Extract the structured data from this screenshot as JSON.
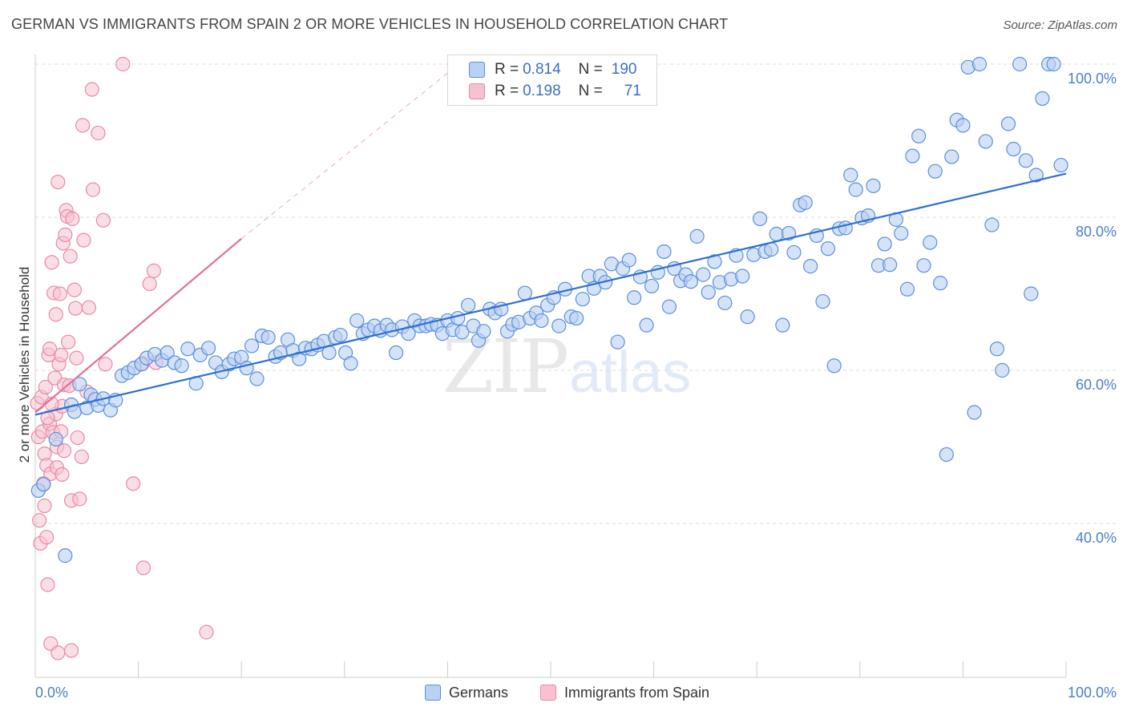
{
  "title": "GERMAN VS IMMIGRANTS FROM SPAIN 2 OR MORE VEHICLES IN HOUSEHOLD CORRELATION CHART",
  "source": "Source: ZipAtlas.com",
  "watermark": {
    "zip": "ZIP",
    "atlas": "atlas"
  },
  "colors": {
    "blue_fill": "#b9d1f3",
    "blue_stroke": "#5b8fd9",
    "blue_line": "#2f6fd1",
    "pink_fill": "#f6c2d2",
    "pink_stroke": "#e88aa7",
    "pink_line": "#e0709a",
    "tick": "#4a7fc9",
    "grid": "#dddddd"
  },
  "legend": {
    "r_label": "R =",
    "n_label": "N =",
    "rows": [
      {
        "r": "0.814",
        "n": "190"
      },
      {
        "r": "0.198",
        "n": "71"
      }
    ]
  },
  "chart_data": {
    "type": "scatter",
    "title": "GERMAN VS IMMIGRANTS FROM SPAIN 2 OR MORE VEHICLES IN HOUSEHOLD CORRELATION CHART",
    "xlabel": "",
    "ylabel": "2 or more Vehicles in Household",
    "xlim": [
      0,
      100
    ],
    "ylim": [
      20,
      101
    ],
    "x_tick_labels": [
      "0.0%",
      "100.0%"
    ],
    "y_tick_labels": [
      "40.0%",
      "60.0%",
      "80.0%",
      "100.0%"
    ],
    "y_ticks": [
      40,
      60,
      80,
      100
    ],
    "grid": true,
    "legend_position": "top-center",
    "series": [
      {
        "name": "Germans",
        "color": "#5b8fd9",
        "trend": {
          "x": [
            0,
            100
          ],
          "y": [
            54.2,
            85.7
          ]
        },
        "points": [
          [
            0.3,
            44.3
          ],
          [
            0.8,
            45.1
          ],
          [
            2.0,
            51.0
          ],
          [
            2.9,
            35.8
          ],
          [
            3.5,
            55.5
          ],
          [
            3.8,
            54.6
          ],
          [
            4.3,
            58.2
          ],
          [
            5.0,
            55.1
          ],
          [
            5.4,
            56.8
          ],
          [
            5.8,
            56.2
          ],
          [
            6.1,
            55.4
          ],
          [
            6.6,
            56.3
          ],
          [
            7.3,
            54.8
          ],
          [
            7.8,
            56.1
          ],
          [
            8.4,
            59.3
          ],
          [
            9.0,
            59.7
          ],
          [
            9.6,
            60.3
          ],
          [
            10.3,
            60.8
          ],
          [
            10.8,
            61.6
          ],
          [
            11.6,
            62.1
          ],
          [
            12.3,
            61.3
          ],
          [
            12.8,
            62.3
          ],
          [
            13.5,
            61.0
          ],
          [
            14.2,
            60.6
          ],
          [
            14.8,
            62.8
          ],
          [
            15.6,
            58.3
          ],
          [
            16.0,
            62.0
          ],
          [
            16.8,
            62.9
          ],
          [
            17.5,
            61.0
          ],
          [
            18.1,
            59.8
          ],
          [
            18.8,
            60.8
          ],
          [
            19.3,
            61.5
          ],
          [
            20.0,
            61.7
          ],
          [
            20.5,
            60.3
          ],
          [
            21.0,
            63.2
          ],
          [
            21.5,
            58.9
          ],
          [
            22.0,
            64.5
          ],
          [
            22.6,
            64.3
          ],
          [
            23.3,
            61.8
          ],
          [
            23.8,
            62.3
          ],
          [
            24.5,
            64.0
          ],
          [
            25.0,
            62.6
          ],
          [
            25.6,
            61.5
          ],
          [
            26.2,
            62.9
          ],
          [
            26.8,
            62.8
          ],
          [
            27.4,
            63.3
          ],
          [
            28.0,
            63.8
          ],
          [
            28.5,
            62.3
          ],
          [
            29.1,
            64.3
          ],
          [
            29.6,
            64.6
          ],
          [
            30.1,
            62.3
          ],
          [
            30.6,
            60.9
          ],
          [
            31.2,
            66.5
          ],
          [
            31.8,
            64.8
          ],
          [
            32.3,
            65.3
          ],
          [
            32.9,
            65.8
          ],
          [
            33.5,
            65.2
          ],
          [
            34.1,
            65.9
          ],
          [
            34.6,
            65.3
          ],
          [
            35.0,
            62.3
          ],
          [
            35.6,
            65.7
          ],
          [
            36.2,
            64.8
          ],
          [
            36.8,
            66.5
          ],
          [
            37.3,
            65.8
          ],
          [
            37.9,
            65.8
          ],
          [
            38.4,
            66.0
          ],
          [
            39.0,
            65.9
          ],
          [
            39.5,
            64.8
          ],
          [
            40.0,
            66.5
          ],
          [
            40.5,
            65.3
          ],
          [
            41.0,
            66.8
          ],
          [
            41.4,
            65.0
          ],
          [
            42.0,
            68.5
          ],
          [
            42.5,
            65.8
          ],
          [
            43.0,
            63.9
          ],
          [
            43.5,
            65.1
          ],
          [
            44.1,
            68.0
          ],
          [
            44.6,
            67.5
          ],
          [
            45.2,
            68.0
          ],
          [
            45.8,
            65.1
          ],
          [
            46.3,
            66.0
          ],
          [
            46.9,
            66.3
          ],
          [
            47.5,
            70.1
          ],
          [
            48.0,
            66.8
          ],
          [
            48.6,
            67.5
          ],
          [
            49.1,
            66.5
          ],
          [
            49.7,
            68.5
          ],
          [
            50.3,
            69.5
          ],
          [
            50.8,
            65.8
          ],
          [
            51.4,
            70.6
          ],
          [
            52.0,
            67.0
          ],
          [
            52.5,
            66.8
          ],
          [
            53.1,
            69.3
          ],
          [
            53.7,
            72.3
          ],
          [
            54.2,
            70.7
          ],
          [
            54.8,
            72.3
          ],
          [
            55.3,
            71.5
          ],
          [
            55.9,
            73.9
          ],
          [
            56.5,
            63.7
          ],
          [
            57.0,
            73.3
          ],
          [
            57.6,
            74.4
          ],
          [
            58.1,
            69.5
          ],
          [
            58.7,
            72.2
          ],
          [
            59.3,
            65.9
          ],
          [
            59.8,
            71.0
          ],
          [
            60.4,
            72.8
          ],
          [
            61.0,
            75.5
          ],
          [
            61.5,
            68.3
          ],
          [
            62.0,
            73.3
          ],
          [
            62.6,
            71.7
          ],
          [
            63.1,
            72.5
          ],
          [
            63.6,
            71.6
          ],
          [
            64.2,
            77.5
          ],
          [
            64.8,
            72.5
          ],
          [
            65.3,
            70.2
          ],
          [
            65.9,
            74.2
          ],
          [
            66.4,
            71.5
          ],
          [
            66.9,
            68.8
          ],
          [
            67.5,
            71.9
          ],
          [
            68.0,
            75.0
          ],
          [
            68.6,
            72.3
          ],
          [
            69.1,
            67.0
          ],
          [
            69.7,
            75.1
          ],
          [
            70.3,
            79.8
          ],
          [
            70.8,
            75.5
          ],
          [
            71.4,
            75.8
          ],
          [
            71.9,
            77.8
          ],
          [
            72.5,
            65.9
          ],
          [
            73.1,
            77.9
          ],
          [
            73.6,
            75.4
          ],
          [
            74.2,
            81.6
          ],
          [
            74.7,
            81.9
          ],
          [
            75.2,
            73.6
          ],
          [
            75.8,
            77.6
          ],
          [
            76.4,
            69.0
          ],
          [
            76.9,
            75.9
          ],
          [
            77.5,
            60.6
          ],
          [
            78.0,
            78.5
          ],
          [
            78.6,
            78.6
          ],
          [
            79.1,
            85.5
          ],
          [
            79.6,
            83.6
          ],
          [
            80.2,
            79.9
          ],
          [
            80.8,
            80.2
          ],
          [
            81.3,
            84.1
          ],
          [
            81.8,
            73.7
          ],
          [
            82.4,
            76.5
          ],
          [
            82.9,
            73.8
          ],
          [
            83.5,
            79.7
          ],
          [
            84.0,
            77.9
          ],
          [
            84.6,
            70.6
          ],
          [
            85.1,
            88.0
          ],
          [
            85.7,
            90.6
          ],
          [
            86.2,
            73.7
          ],
          [
            86.8,
            76.7
          ],
          [
            87.3,
            86.0
          ],
          [
            87.8,
            71.4
          ],
          [
            88.4,
            49.0
          ],
          [
            88.9,
            87.9
          ],
          [
            89.4,
            92.7
          ],
          [
            90.0,
            92.0
          ],
          [
            90.5,
            99.6
          ],
          [
            91.1,
            54.5
          ],
          [
            91.6,
            100.0
          ],
          [
            92.2,
            89.9
          ],
          [
            92.8,
            79.0
          ],
          [
            93.3,
            62.8
          ],
          [
            93.8,
            60.0
          ],
          [
            94.4,
            92.2
          ],
          [
            94.9,
            88.9
          ],
          [
            95.5,
            100.0
          ],
          [
            96.1,
            87.4
          ],
          [
            96.6,
            70.0
          ],
          [
            97.1,
            85.5
          ],
          [
            97.7,
            95.5
          ],
          [
            98.3,
            100.0
          ],
          [
            98.8,
            100.0
          ],
          [
            99.5,
            86.8
          ]
        ]
      },
      {
        "name": "Immigrants from Spain",
        "color": "#e88aa7",
        "trend": {
          "x": [
            0,
            20
          ],
          "y": [
            54.5,
            77.2
          ]
        },
        "trend_dashed": {
          "x": [
            20,
            42
          ],
          "y": [
            77.2,
            101.0
          ]
        },
        "points": [
          [
            0.2,
            55.7
          ],
          [
            0.3,
            51.3
          ],
          [
            0.4,
            40.4
          ],
          [
            0.5,
            37.4
          ],
          [
            0.6,
            56.5
          ],
          [
            0.7,
            52.0
          ],
          [
            0.8,
            45.2
          ],
          [
            0.9,
            49.1
          ],
          [
            1.0,
            57.8
          ],
          [
            1.1,
            47.6
          ],
          [
            1.1,
            38.2
          ],
          [
            1.2,
            32.0
          ],
          [
            1.3,
            62.0
          ],
          [
            1.4,
            53.0
          ],
          [
            1.5,
            24.3
          ],
          [
            1.5,
            46.5
          ],
          [
            1.6,
            74.1
          ],
          [
            1.7,
            51.9
          ],
          [
            1.8,
            70.1
          ],
          [
            1.9,
            59.0
          ],
          [
            2.0,
            67.3
          ],
          [
            2.0,
            54.3
          ],
          [
            2.1,
            47.3
          ],
          [
            2.2,
            23.1
          ],
          [
            2.2,
            84.6
          ],
          [
            2.3,
            60.8
          ],
          [
            2.4,
            70.0
          ],
          [
            2.5,
            62.0
          ],
          [
            2.5,
            52.0
          ],
          [
            2.6,
            46.4
          ],
          [
            2.7,
            76.6
          ],
          [
            2.8,
            58.1
          ],
          [
            2.9,
            77.7
          ],
          [
            3.0,
            80.9
          ],
          [
            3.1,
            80.1
          ],
          [
            3.2,
            63.7
          ],
          [
            3.3,
            58.0
          ],
          [
            3.4,
            74.9
          ],
          [
            3.5,
            43.0
          ],
          [
            3.5,
            23.4
          ],
          [
            3.8,
            70.5
          ],
          [
            3.9,
            68.1
          ],
          [
            4.0,
            61.6
          ],
          [
            4.1,
            51.2
          ],
          [
            4.3,
            43.2
          ],
          [
            4.5,
            48.7
          ],
          [
            4.6,
            92.0
          ],
          [
            4.7,
            77.0
          ],
          [
            5.0,
            57.2
          ],
          [
            5.5,
            96.7
          ],
          [
            5.6,
            83.6
          ],
          [
            6.1,
            91.0
          ],
          [
            6.6,
            79.6
          ],
          [
            6.8,
            60.8
          ],
          [
            9.5,
            45.2
          ],
          [
            10.4,
            60.9
          ],
          [
            10.5,
            34.2
          ],
          [
            11.1,
            71.3
          ],
          [
            11.5,
            73.0
          ],
          [
            11.7,
            61.0
          ],
          [
            16.6,
            25.8
          ],
          [
            8.5,
            100.0
          ],
          [
            1.4,
            62.8
          ],
          [
            2.6,
            55.3
          ],
          [
            3.6,
            79.8
          ],
          [
            2.1,
            50.0
          ],
          [
            0.9,
            42.3
          ],
          [
            1.6,
            55.6
          ],
          [
            1.2,
            53.8
          ],
          [
            2.8,
            49.5
          ],
          [
            5.2,
            68.2
          ]
        ]
      }
    ]
  },
  "bottom_legend": [
    {
      "label": "Germans"
    },
    {
      "label": "Immigrants from Spain"
    }
  ]
}
